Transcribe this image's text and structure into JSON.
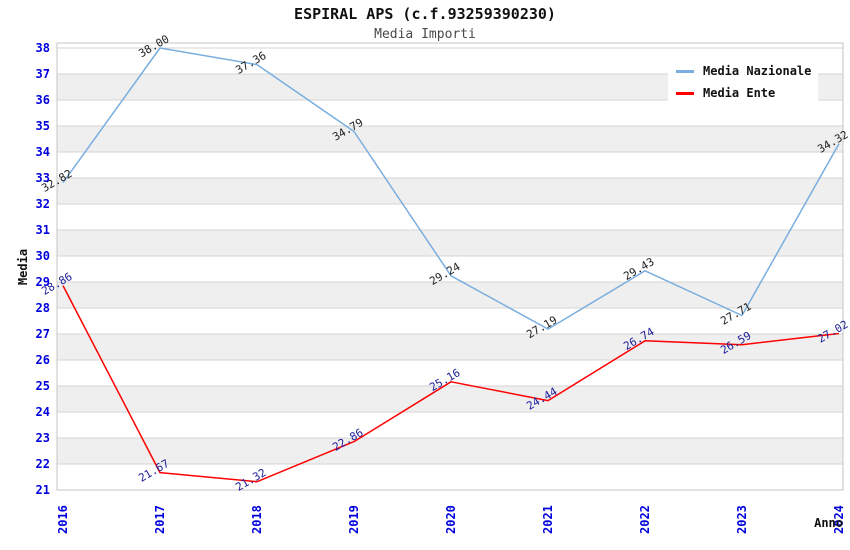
{
  "chart_data": {
    "type": "line",
    "title": "ESPIRAL APS (c.f.93259390230)",
    "subtitle": "Media Importi",
    "xlabel": "Anno",
    "ylabel": "Media",
    "categories": [
      "2016",
      "2017",
      "2018",
      "2019",
      "2020",
      "2021",
      "2022",
      "2023",
      "2024"
    ],
    "series": [
      {
        "name": "Media Nazionale",
        "color": "#79aede",
        "label_color": "#222222",
        "values": [
          32.82,
          38.0,
          37.36,
          34.79,
          29.24,
          27.19,
          29.43,
          27.71,
          34.32
        ]
      },
      {
        "name": "Media Ente",
        "color": "#ff0000",
        "label_color": "#20209a",
        "values": [
          28.86,
          21.67,
          21.32,
          22.86,
          25.16,
          24.44,
          26.74,
          26.59,
          27.02
        ]
      }
    ],
    "ylim": [
      21,
      38
    ],
    "ytick_step": 1,
    "grid": true,
    "band_fill": "#efefef",
    "gridline_color": "#d6d6d6",
    "border_color": "#c4c4c4",
    "tick_label_color": "#0000dd",
    "axis_title_color": "#111111",
    "legend_position": "top-right",
    "value_label_rotation_deg": -30,
    "value_label_decimals": 2
  }
}
